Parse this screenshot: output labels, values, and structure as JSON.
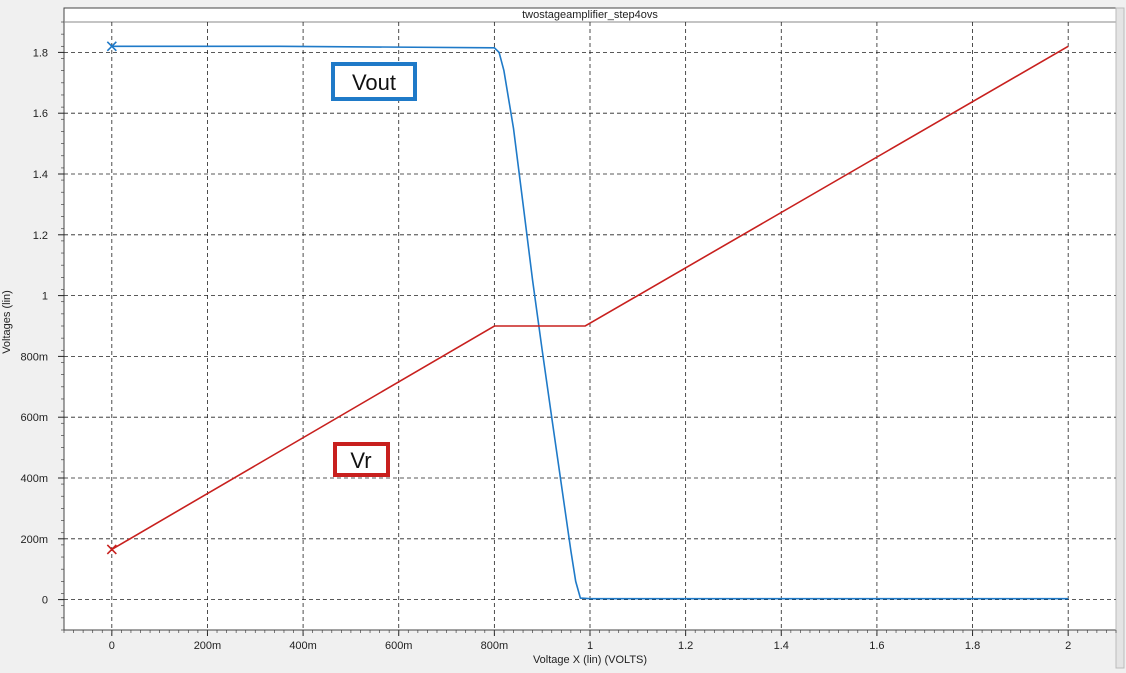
{
  "chart_data": {
    "type": "line",
    "title": "twostageamplifier_step4ovs",
    "xlabel": "Voltage X (lin) (VOLTS)",
    "ylabel": "Voltages (lin)",
    "xlim": [
      -0.1,
      2.1
    ],
    "ylim": [
      -0.1,
      1.9
    ],
    "grid": true,
    "x_ticks": [
      {
        "value": 0,
        "label": "0"
      },
      {
        "value": 0.2,
        "label": "200m"
      },
      {
        "value": 0.4,
        "label": "400m"
      },
      {
        "value": 0.6,
        "label": "600m"
      },
      {
        "value": 0.8,
        "label": "800m"
      },
      {
        "value": 1.0,
        "label": "1"
      },
      {
        "value": 1.2,
        "label": "1.2"
      },
      {
        "value": 1.4,
        "label": "1.4"
      },
      {
        "value": 1.6,
        "label": "1.6"
      },
      {
        "value": 1.8,
        "label": "1.8"
      },
      {
        "value": 2.0,
        "label": "2"
      }
    ],
    "y_ticks": [
      {
        "value": 0,
        "label": "0"
      },
      {
        "value": 0.2,
        "label": "200m"
      },
      {
        "value": 0.4,
        "label": "400m"
      },
      {
        "value": 0.6,
        "label": "600m"
      },
      {
        "value": 0.8,
        "label": "800m"
      },
      {
        "value": 1.0,
        "label": "1"
      },
      {
        "value": 1.2,
        "label": "1.2"
      },
      {
        "value": 1.4,
        "label": "1.4"
      },
      {
        "value": 1.6,
        "label": "1.6"
      },
      {
        "value": 1.8,
        "label": "1.8"
      }
    ],
    "series": [
      {
        "name": "Vout",
        "color": "#1f7ac8",
        "label_box_color": "#1f7ac8",
        "x": [
          0,
          0.35,
          0.8,
          0.81,
          0.82,
          0.84,
          0.86,
          0.88,
          0.9,
          0.92,
          0.94,
          0.96,
          0.97,
          0.98,
          1.0,
          1.4,
          1.8,
          2.0
        ],
        "values": [
          1.82,
          1.82,
          1.815,
          1.8,
          1.74,
          1.55,
          1.3,
          1.05,
          0.82,
          0.6,
          0.38,
          0.16,
          0.06,
          0.005,
          0.003,
          0.003,
          0.003,
          0.003
        ]
      },
      {
        "name": "Vr",
        "color": "#c8201e",
        "label_box_color": "#c8201e",
        "x": [
          0,
          0.8,
          0.99,
          2.0
        ],
        "values": [
          0.165,
          0.9,
          0.9,
          1.82
        ]
      }
    ]
  }
}
